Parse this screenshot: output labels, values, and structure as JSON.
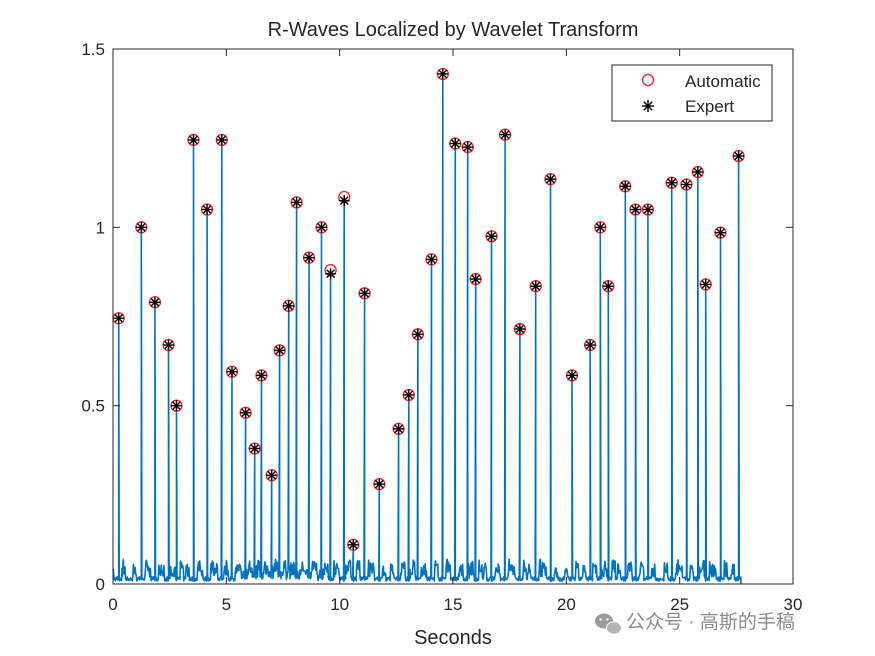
{
  "chart_data": {
    "type": "line",
    "title": "R-Waves Localized by Wavelet Transform",
    "xlabel": "Seconds",
    "ylabel": "",
    "xlim": [
      0,
      30
    ],
    "ylim": [
      0,
      1.5
    ],
    "x_ticks": [
      "0",
      "5",
      "10",
      "15",
      "20",
      "25",
      "30"
    ],
    "y_ticks": [
      "0",
      "0.5",
      "1",
      "1.5"
    ],
    "grid": false,
    "legend_position": "top-right",
    "colors": {
      "signal": "#0072BD",
      "automatic": "#E8222A",
      "expert": "#000000"
    },
    "series": [
      {
        "name": "Automatic",
        "marker": "circle",
        "x": [
          0.25,
          1.25,
          1.85,
          2.45,
          2.8,
          3.55,
          4.15,
          4.8,
          5.25,
          5.85,
          6.25,
          6.55,
          7.0,
          7.35,
          7.75,
          8.1,
          8.65,
          9.2,
          9.6,
          10.2,
          10.6,
          11.1,
          11.75,
          12.6,
          13.05,
          13.45,
          14.05,
          14.55,
          15.1,
          15.65,
          16.0,
          16.7,
          17.3,
          17.95,
          18.65,
          19.3,
          20.25,
          21.05,
          21.5,
          21.85,
          22.6,
          23.05,
          23.6,
          24.65,
          25.3,
          25.8,
          26.15,
          26.8,
          27.6
        ],
        "y": [
          0.745,
          1.0,
          0.79,
          0.67,
          0.5,
          1.245,
          1.05,
          1.245,
          0.595,
          0.48,
          0.38,
          0.585,
          0.305,
          0.655,
          0.78,
          1.07,
          0.915,
          1.0,
          0.88,
          1.085,
          0.11,
          0.815,
          0.28,
          0.435,
          0.53,
          0.7,
          0.91,
          1.43,
          1.235,
          1.225,
          0.855,
          0.975,
          1.26,
          0.715,
          0.835,
          1.135,
          0.585,
          0.67,
          1.0,
          0.835,
          1.115,
          1.05,
          1.05,
          1.125,
          1.12,
          1.155,
          0.84,
          0.985,
          1.2
        ]
      },
      {
        "name": "Expert",
        "marker": "asterisk",
        "x": [
          0.25,
          1.25,
          1.85,
          2.45,
          2.8,
          3.55,
          4.15,
          4.8,
          5.25,
          5.85,
          6.25,
          6.55,
          7.0,
          7.35,
          7.75,
          8.1,
          8.65,
          9.2,
          9.6,
          10.2,
          10.6,
          11.1,
          11.75,
          12.6,
          13.05,
          13.45,
          14.05,
          14.55,
          15.1,
          15.65,
          16.0,
          16.7,
          17.3,
          17.95,
          18.65,
          19.3,
          20.25,
          21.05,
          21.5,
          21.85,
          22.6,
          23.05,
          23.6,
          24.65,
          25.3,
          25.8,
          26.15,
          26.8,
          27.6
        ],
        "y": [
          0.745,
          1.0,
          0.79,
          0.67,
          0.5,
          1.245,
          1.05,
          1.245,
          0.595,
          0.48,
          0.38,
          0.585,
          0.305,
          0.655,
          0.78,
          1.07,
          0.915,
          1.0,
          0.87,
          1.075,
          0.11,
          0.815,
          0.28,
          0.435,
          0.53,
          0.7,
          0.91,
          1.43,
          1.235,
          1.225,
          0.855,
          0.975,
          1.26,
          0.715,
          0.835,
          1.135,
          0.585,
          0.67,
          1.0,
          0.835,
          1.115,
          1.05,
          1.05,
          1.125,
          1.12,
          1.155,
          0.84,
          0.985,
          1.2
        ]
      }
    ]
  },
  "watermark": {
    "icon": "wechat-icon",
    "text": "公众号 · 高斯的手稿"
  }
}
